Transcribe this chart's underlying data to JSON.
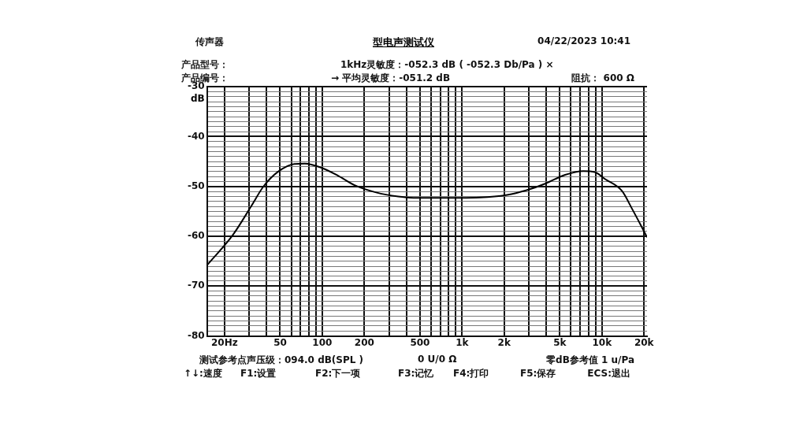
{
  "chart_data": {
    "type": "line",
    "title": "型电声测试仪",
    "ylabel": "dB",
    "annotations": [
      "传声器",
      "04/22/2023  10:41",
      "产品型号：",
      "1kHz灵敏度：-052.3 dB ( -052.3 Db/Pa ) ×",
      "产品编号：",
      "→ 平均灵敏度：-051.2 dB",
      "阻抗： 600 Ω",
      "测试参考点声压级：094.0 dB(SPL )",
      "0 U/0 Ω",
      "零dB参考值 1 u/Pa",
      "↑↓:速度",
      "F1:设置",
      "F2:下一项",
      "F3:记忆",
      "F4:打印",
      "F5:保存",
      "ECS:退出"
    ],
    "x": [
      15,
      23,
      31,
      38,
      48,
      63,
      75,
      98,
      129,
      169,
      243,
      349,
      477,
      624,
      1346,
      2100,
      2860,
      3960,
      5400,
      7360,
      8890,
      10500,
      13900,
      16500,
      18900,
      21000
    ],
    "series": [
      {
        "color": "#000000",
        "values": [
          -65.8,
          -59.7,
          -54.0,
          -50.0,
          -47.1,
          -45.5,
          -45.4,
          -46.2,
          -47.8,
          -49.7,
          -51.2,
          -52.0,
          -52.3,
          -52.3,
          -52.2,
          -51.7,
          -50.8,
          -49.4,
          -47.7,
          -46.9,
          -47.1,
          -48.5,
          -50.9,
          -54.6,
          -57.7,
          -60.2
        ]
      }
    ],
    "log": "x",
    "xlim": [
      15,
      21000
    ],
    "xticks": [
      {
        "value": 20,
        "label": "20Hz"
      },
      {
        "value": 30,
        "label": null
      },
      {
        "value": 40,
        "label": null
      },
      50,
      {
        "value": 60,
        "label": null
      },
      {
        "value": 70,
        "label": null
      },
      {
        "value": 80,
        "label": null
      },
      {
        "value": 90,
        "label": null
      },
      100,
      200,
      {
        "value": 300,
        "label": null
      },
      {
        "value": 400,
        "label": null
      },
      500,
      {
        "value": 600,
        "label": null
      },
      {
        "value": 700,
        "label": null
      },
      {
        "value": 800,
        "label": null
      },
      {
        "value": 900,
        "label": null
      },
      {
        "value": 1000,
        "label": "1k"
      },
      {
        "value": 2000,
        "label": "2k"
      },
      {
        "value": 3000,
        "label": null
      },
      {
        "value": 4000,
        "label": null
      },
      {
        "value": 5000,
        "label": "5k"
      },
      {
        "value": 6000,
        "label": null
      },
      {
        "value": 7000,
        "label": null
      },
      {
        "value": 8000,
        "label": null
      },
      {
        "value": 9000,
        "label": null
      },
      {
        "value": 10000,
        "label": "10k"
      },
      {
        "value": 20000,
        "label": "20k"
      }
    ],
    "ylim": [
      -80,
      -30
    ],
    "yticks": [
      -80,
      {
        "value": -79,
        "label": null
      },
      {
        "value": -78,
        "label": null
      },
      {
        "value": -77,
        "label": null
      },
      {
        "value": -76,
        "label": null
      },
      {
        "value": -75,
        "label": null
      },
      {
        "value": -74,
        "label": null
      },
      {
        "value": -73,
        "label": null
      },
      {
        "value": -72,
        "label": null
      },
      {
        "value": -71,
        "label": null
      },
      -70,
      {
        "value": -69,
        "label": null
      },
      {
        "value": -68,
        "label": null
      },
      {
        "value": -67,
        "label": null
      },
      {
        "value": -66,
        "label": null
      },
      {
        "value": -65,
        "label": null
      },
      {
        "value": -64,
        "label": null
      },
      {
        "value": -63,
        "label": null
      },
      {
        "value": -62,
        "label": null
      },
      {
        "value": -61,
        "label": null
      },
      -60,
      {
        "value": -59,
        "label": null
      },
      {
        "value": -58,
        "label": null
      },
      {
        "value": -57,
        "label": null
      },
      {
        "value": -56,
        "label": null
      },
      {
        "value": -55,
        "label": null
      },
      {
        "value": -54,
        "label": null
      },
      {
        "value": -53,
        "label": null
      },
      {
        "value": -52,
        "label": null
      },
      {
        "value": -51,
        "label": null
      },
      -50,
      {
        "value": -49,
        "label": null
      },
      {
        "value": -48,
        "label": null
      },
      {
        "value": -47,
        "label": null
      },
      {
        "value": -46,
        "label": null
      },
      {
        "value": -45,
        "label": null
      },
      {
        "value": -44,
        "label": null
      },
      {
        "value": -43,
        "label": null
      },
      {
        "value": -42,
        "label": null
      },
      {
        "value": -41,
        "label": null
      },
      -40,
      {
        "value": -39,
        "label": null
      },
      {
        "value": -38,
        "label": null
      },
      {
        "value": -37,
        "label": null
      },
      {
        "value": -36,
        "label": null
      },
      {
        "value": -35,
        "label": null
      },
      {
        "value": -34,
        "label": null
      },
      {
        "value": -33,
        "label": null
      },
      {
        "value": -32,
        "label": null
      },
      {
        "value": -31,
        "label": null
      },
      -30
    ],
    "grid": true,
    "marker": "none",
    "line_style": "solid",
    "legend": false
  }
}
